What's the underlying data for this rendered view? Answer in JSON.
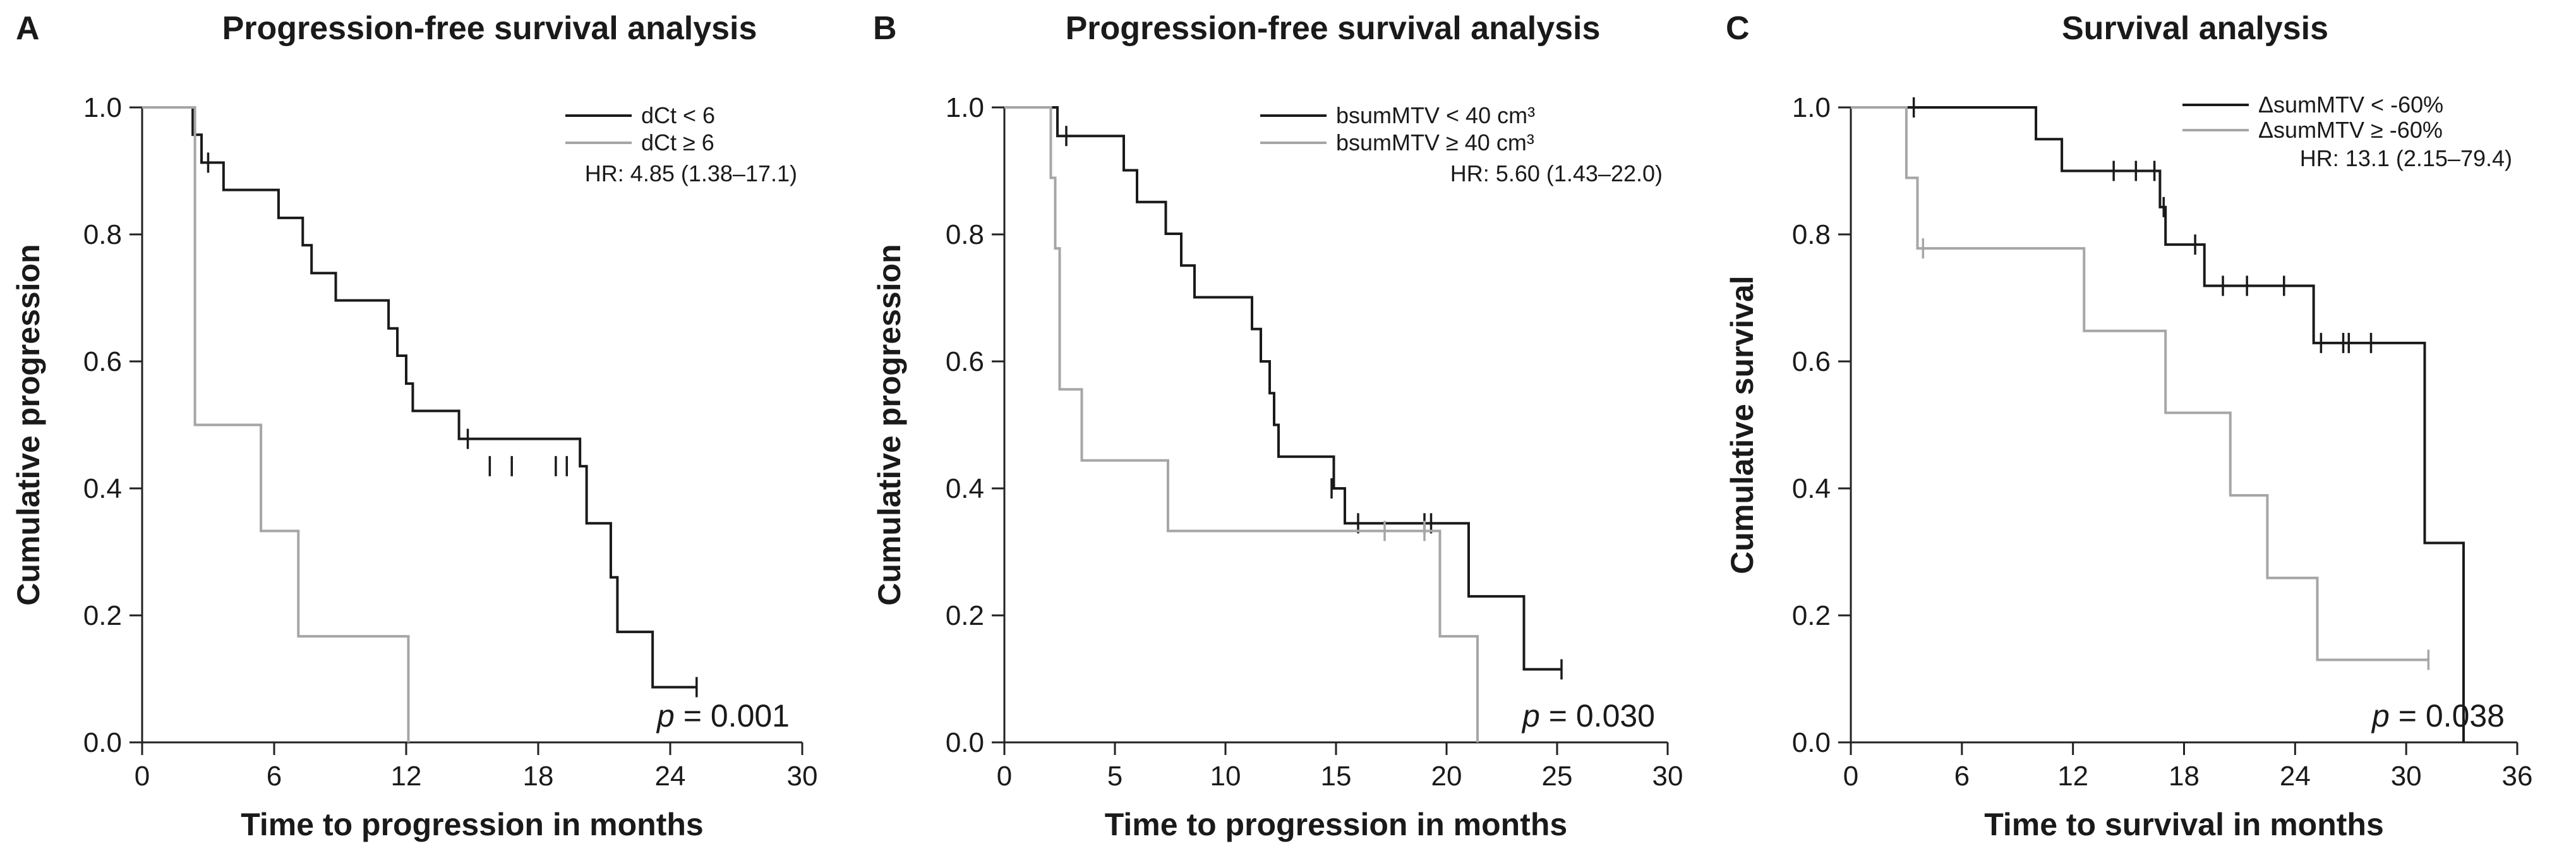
{
  "chart_data": [
    {
      "type": "line",
      "panel": "A",
      "title": "Progression-free survival analysis",
      "xlabel": "Time to progression in months",
      "ylabel": "Cumulative progression",
      "xlim": [
        0,
        30
      ],
      "ylim": [
        0,
        1.0
      ],
      "xticks": [
        "0",
        "6",
        "12",
        "18",
        "24",
        "30"
      ],
      "xtick_values": [
        0,
        6,
        12,
        18,
        24,
        30
      ],
      "yticks": [
        "0.0",
        "0.2",
        "0.4",
        "0.6",
        "0.8",
        "1.0"
      ],
      "ytick_values": [
        0,
        0.2,
        0.4,
        0.6,
        0.8,
        1.0
      ],
      "legend_position": "top-right",
      "hr_text": "HR: 4.85 (1.38–17.1)",
      "p_label": "p",
      "p_value": "= 0.001",
      "series": [
        {
          "name": "dCt < 6",
          "color": "#1a1a1a",
          "steps": [
            [
              0,
              1.0
            ],
            [
              2.3,
              0.957
            ],
            [
              2.7,
              0.913
            ],
            [
              3.7,
              0.87
            ],
            [
              6.2,
              0.826
            ],
            [
              7.3,
              0.783
            ],
            [
              7.7,
              0.739
            ],
            [
              8.8,
              0.696
            ],
            [
              11.2,
              0.652
            ],
            [
              11.6,
              0.609
            ],
            [
              12.0,
              0.565
            ],
            [
              12.3,
              0.522
            ],
            [
              14.4,
              0.478
            ],
            [
              19.9,
              0.435
            ],
            [
              20.2,
              0.345
            ],
            [
              21.3,
              0.26
            ],
            [
              21.6,
              0.174
            ],
            [
              23.2,
              0.087
            ]
          ],
          "end": 25.2,
          "censors": [
            [
              3.0,
              0.913
            ],
            [
              14.8,
              0.478
            ],
            [
              15.8,
              0.435
            ],
            [
              16.8,
              0.435
            ],
            [
              18.8,
              0.435
            ],
            [
              19.3,
              0.435
            ],
            [
              25.2,
              0.087
            ]
          ]
        },
        {
          "name": "dCt ≥ 6",
          "color": "#a6a6a6",
          "steps": [
            [
              0,
              1.0
            ],
            [
              2.4,
              0.5
            ],
            [
              5.4,
              0.333
            ],
            [
              7.1,
              0.167
            ],
            [
              12.1,
              0.0
            ]
          ],
          "end": 12.1,
          "censors": []
        }
      ]
    },
    {
      "type": "line",
      "panel": "B",
      "title": "Progression-free survival analysis",
      "xlabel": "Time to progression in months",
      "ylabel": "Cumulative progression",
      "xlim": [
        0,
        30
      ],
      "ylim": [
        0,
        1.0
      ],
      "xticks": [
        "0",
        "5",
        "10",
        "15",
        "20",
        "25",
        "30"
      ],
      "xtick_values": [
        0,
        5,
        10,
        15,
        20,
        25,
        30
      ],
      "yticks": [
        "0.0",
        "0.2",
        "0.4",
        "0.6",
        "0.8",
        "1.0"
      ],
      "ytick_values": [
        0,
        0.2,
        0.4,
        0.6,
        0.8,
        1.0
      ],
      "legend_position": "top-right",
      "hr_text": "HR: 5.60 (1.43–22.0)",
      "p_label": "p",
      "p_value": "= 0.030",
      "series": [
        {
          "name": "bsumMTV < 40 cm³",
          "color": "#1a1a1a",
          "steps": [
            [
              0,
              1.0
            ],
            [
              2.4,
              0.955
            ],
            [
              5.4,
              0.901
            ],
            [
              6.0,
              0.851
            ],
            [
              7.3,
              0.801
            ],
            [
              8.0,
              0.751
            ],
            [
              8.6,
              0.701
            ],
            [
              11.2,
              0.651
            ],
            [
              11.6,
              0.6
            ],
            [
              12.0,
              0.55
            ],
            [
              12.2,
              0.5
            ],
            [
              12.4,
              0.45
            ],
            [
              14.9,
              0.4
            ],
            [
              15.4,
              0.345
            ],
            [
              21.0,
              0.23
            ],
            [
              23.5,
              0.115
            ]
          ],
          "end": 25.2,
          "censors": [
            [
              2.8,
              0.955
            ],
            [
              14.8,
              0.4
            ],
            [
              16.0,
              0.345
            ],
            [
              19.0,
              0.345
            ],
            [
              19.3,
              0.345
            ],
            [
              25.2,
              0.115
            ]
          ]
        },
        {
          "name": "bsumMTV ≥ 40 cm³",
          "color": "#a6a6a6",
          "steps": [
            [
              0,
              1.0
            ],
            [
              2.1,
              0.889
            ],
            [
              2.3,
              0.778
            ],
            [
              2.5,
              0.556
            ],
            [
              3.5,
              0.444
            ],
            [
              7.4,
              0.333
            ],
            [
              19.7,
              0.167
            ],
            [
              21.4,
              0.0
            ]
          ],
          "end": 21.4,
          "censors": [
            [
              17.2,
              0.333
            ],
            [
              19.0,
              0.333
            ]
          ]
        }
      ]
    },
    {
      "type": "line",
      "panel": "C",
      "title": "Survival analysis",
      "xlabel": "Time to survival in months",
      "ylabel": "Cumulative survival",
      "xlim": [
        0,
        36
      ],
      "ylim": [
        0,
        1.0
      ],
      "xticks": [
        "0",
        "6",
        "12",
        "18",
        "24",
        "30",
        "36"
      ],
      "xtick_values": [
        0,
        6,
        12,
        18,
        24,
        30,
        36
      ],
      "yticks": [
        "0.0",
        "0.2",
        "0.4",
        "0.6",
        "0.8",
        "1.0"
      ],
      "ytick_values": [
        0,
        0.2,
        0.4,
        0.6,
        0.8,
        1.0
      ],
      "legend_position": "top-right",
      "hr_text": "HR: 13.1 (2.15–79.4)",
      "p_label": "p",
      "p_value": "= 0.038",
      "series": [
        {
          "name": "ΔsumMTV < -60%",
          "color": "#1a1a1a",
          "steps": [
            [
              0,
              1.0
            ],
            [
              10.0,
              0.95
            ],
            [
              11.4,
              0.9
            ],
            [
              16.7,
              0.843
            ],
            [
              17.0,
              0.784
            ],
            [
              19.1,
              0.719
            ],
            [
              25.0,
              0.629
            ],
            [
              31.0,
              0.314
            ],
            [
              33.1,
              0.0
            ]
          ],
          "end": 33.1,
          "censors": [
            [
              3.4,
              1.0
            ],
            [
              14.2,
              0.9
            ],
            [
              15.4,
              0.9
            ],
            [
              16.4,
              0.9
            ],
            [
              16.9,
              0.843
            ],
            [
              18.6,
              0.784
            ],
            [
              20.1,
              0.719
            ],
            [
              21.4,
              0.719
            ],
            [
              23.4,
              0.719
            ],
            [
              25.4,
              0.629
            ],
            [
              26.6,
              0.629
            ],
            [
              26.9,
              0.629
            ],
            [
              28.1,
              0.629
            ]
          ]
        },
        {
          "name": "ΔsumMTV ≥ -60%",
          "color": "#a6a6a6",
          "steps": [
            [
              0,
              1.0
            ],
            [
              3.0,
              0.889
            ],
            [
              3.6,
              0.778
            ],
            [
              12.6,
              0.648
            ],
            [
              17.0,
              0.519
            ],
            [
              20.5,
              0.389
            ],
            [
              22.5,
              0.259
            ],
            [
              25.2,
              0.13
            ]
          ],
          "end": 31.2,
          "censors": [
            [
              3.9,
              0.778
            ],
            [
              31.2,
              0.13
            ]
          ]
        }
      ]
    }
  ]
}
